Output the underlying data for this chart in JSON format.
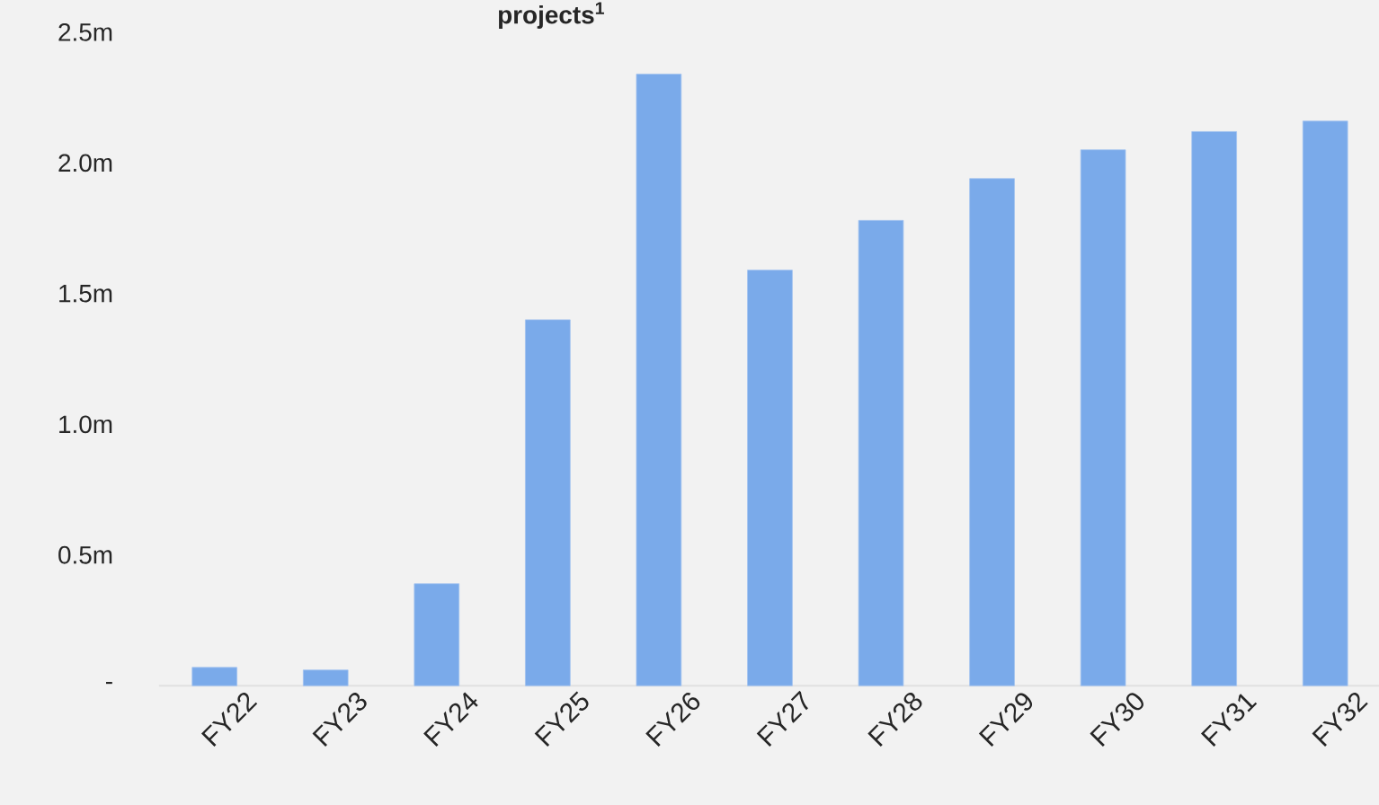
{
  "chart_data": {
    "type": "bar",
    "title": "projects$^{1}$",
    "categories": [
      "FY22",
      "FY23",
      "FY24",
      "FY25",
      "FY26",
      "FY27",
      "FY28",
      "FY29",
      "FY30",
      "FY31",
      "FY32"
    ],
    "values": [
      0.07,
      0.06,
      0.39,
      1.4,
      2.34,
      1.59,
      1.78,
      1.94,
      2.05,
      2.12,
      2.16
    ],
    "color": "#7aaaea",
    "ylim": [
      0,
      2.5
    ],
    "yticks": [
      {
        "value": 0,
        "label": "-"
      },
      {
        "value": 0.5,
        "label": "0.5m"
      },
      {
        "value": 1.0,
        "label": "1.0m"
      },
      {
        "value": 1.5,
        "label": "1.5m"
      },
      {
        "value": 2.0,
        "label": "2.0m"
      },
      {
        "value": 2.5,
        "label": "2.5m"
      }
    ],
    "grid": false
  }
}
